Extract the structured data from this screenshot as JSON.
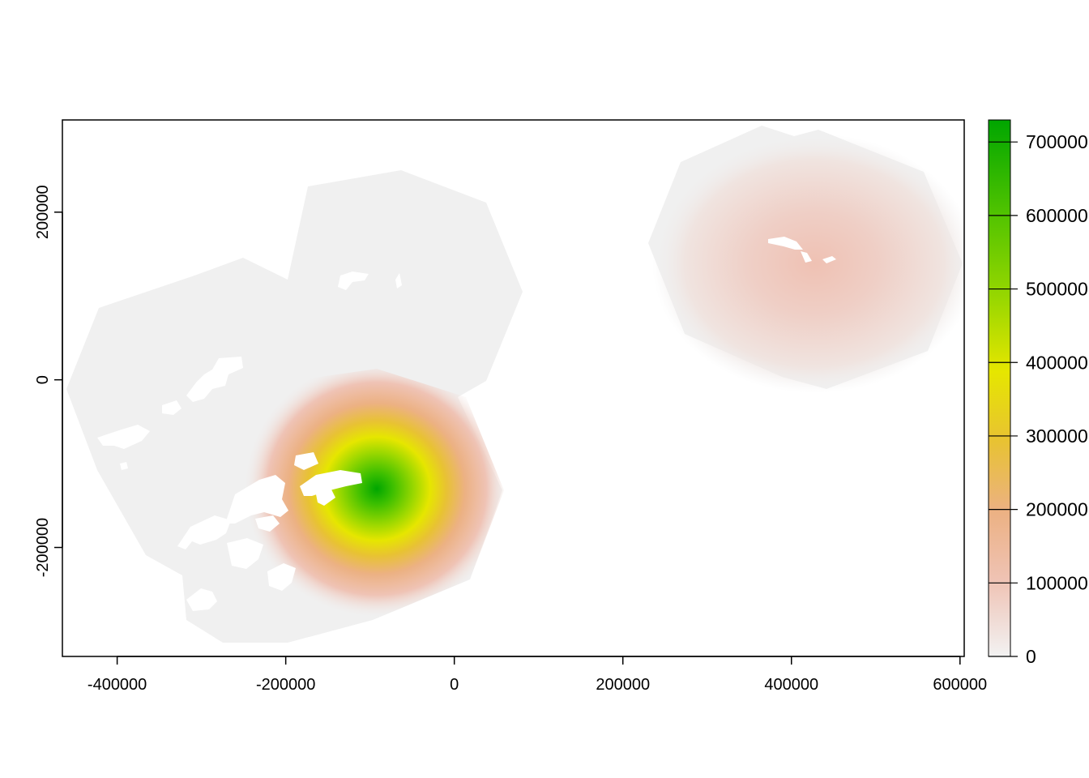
{
  "map": {
    "type": "raster_heatmap",
    "x_axis": {
      "range": [
        -465000,
        605000
      ],
      "ticks": [
        -400000,
        -200000,
        0,
        200000,
        400000,
        600000
      ],
      "tick_labels": [
        "-400000",
        "-200000",
        "0",
        "200000",
        "400000",
        "600000"
      ]
    },
    "y_axis": {
      "range": [
        -330000,
        310000
      ],
      "ticks": [
        -200000,
        0,
        200000
      ],
      "tick_labels": [
        "-200000",
        "0",
        "200000"
      ]
    },
    "legend": {
      "placement": "right",
      "range": [
        0,
        730000
      ],
      "ticks": [
        0,
        100000,
        200000,
        300000,
        400000,
        500000,
        600000,
        700000
      ],
      "tick_labels": [
        "0",
        "100000",
        "200000",
        "300000",
        "400000",
        "500000",
        "600000",
        "700000"
      ],
      "colors": [
        "#f2f2f2",
        "#efc3b5",
        "#ecb183",
        "#e8c233",
        "#e6e600",
        "#9cd800",
        "#53c400",
        "#00a600"
      ]
    },
    "background_color": "#f0f0f0",
    "hotspots": [
      {
        "x": -95000,
        "y": -130000,
        "peak": 720000
      },
      {
        "x": 435000,
        "y": 140000,
        "peak": 90000
      }
    ]
  }
}
